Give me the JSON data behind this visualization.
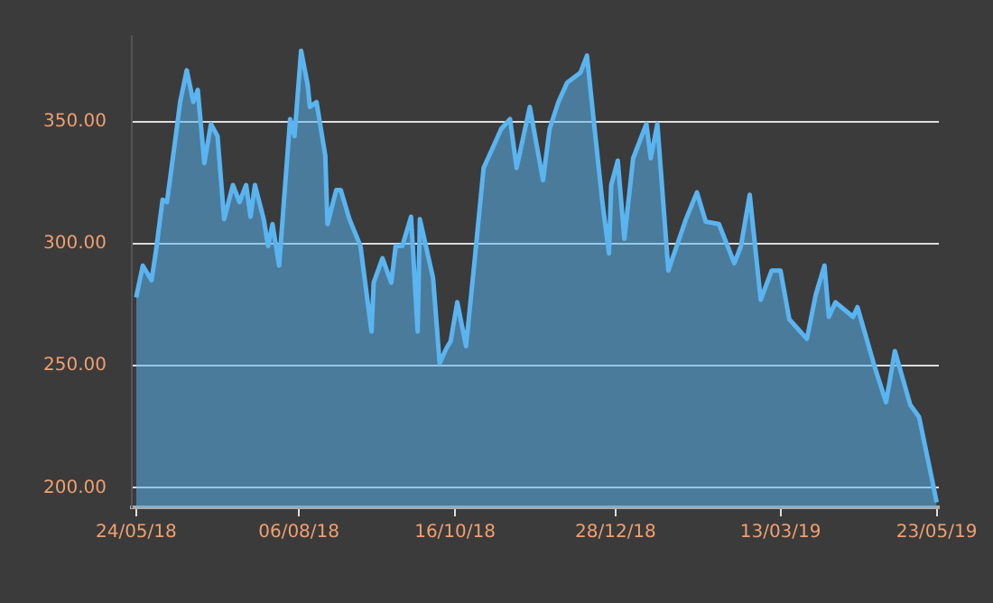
{
  "chart_data": {
    "type": "area",
    "x": [
      "2018-05-24",
      "2018-05-27",
      "2018-05-31",
      "2018-06-02",
      "2018-06-05",
      "2018-06-07",
      "2018-06-11",
      "2018-06-13",
      "2018-06-16",
      "2018-06-19",
      "2018-06-21",
      "2018-06-24",
      "2018-06-27",
      "2018-06-30",
      "2018-07-03",
      "2018-07-07",
      "2018-07-10",
      "2018-07-13",
      "2018-07-15",
      "2018-07-17",
      "2018-07-21",
      "2018-07-23",
      "2018-07-25",
      "2018-07-28",
      "2018-08-02",
      "2018-08-04",
      "2018-08-07",
      "2018-08-10",
      "2018-08-11",
      "2018-08-14",
      "2018-08-18",
      "2018-08-19",
      "2018-08-23",
      "2018-08-25",
      "2018-08-29",
      "2018-09-03",
      "2018-09-08",
      "2018-09-09",
      "2018-09-13",
      "2018-09-17",
      "2018-09-19",
      "2018-09-22",
      "2018-09-26",
      "2018-09-29",
      "2018-09-30",
      "2018-10-06",
      "2018-10-09",
      "2018-10-12",
      "2018-10-14",
      "2018-10-17",
      "2018-10-21",
      "2018-10-25",
      "2018-10-29",
      "2018-11-02",
      "2018-11-06",
      "2018-11-10",
      "2018-11-13",
      "2018-11-19",
      "2018-11-25",
      "2018-11-28",
      "2018-12-02",
      "2018-12-06",
      "2018-12-12",
      "2018-12-15",
      "2018-12-18",
      "2018-12-22",
      "2018-12-25",
      "2018-12-26",
      "2018-12-29",
      "2019-01-01",
      "2019-01-05",
      "2019-01-11",
      "2019-01-13",
      "2019-01-16",
      "2019-01-21",
      "2019-01-29",
      "2019-02-03",
      "2019-02-07",
      "2019-02-13",
      "2019-02-20",
      "2019-02-23",
      "2019-02-27",
      "2019-03-04",
      "2019-03-09",
      "2019-03-13",
      "2019-03-17",
      "2019-03-25",
      "2019-03-29",
      "2019-04-02",
      "2019-04-04",
      "2019-04-07",
      "2019-04-15",
      "2019-04-17",
      "2019-04-25",
      "2019-04-30",
      "2019-05-04",
      "2019-05-11",
      "2019-05-15",
      "2019-05-21",
      "2019-05-23"
    ],
    "series": [
      {
        "color": "#5ab4f0",
        "values": [
          278,
          291,
          285,
          297,
          318,
          317,
          344,
          358,
          371,
          358,
          363,
          333,
          349,
          344,
          310,
          324,
          317,
          324,
          311,
          324,
          310,
          299,
          308,
          291,
          351,
          344,
          379,
          365,
          356,
          358,
          336,
          308,
          322,
          322,
          310,
          299,
          264,
          284,
          294,
          284,
          299,
          299,
          311,
          264,
          310,
          286,
          251,
          257,
          260,
          276,
          258,
          294,
          331,
          339,
          347,
          351,
          331,
          356,
          326,
          347,
          358,
          366,
          370,
          377,
          351,
          317,
          296,
          324,
          334,
          302,
          335,
          349,
          335,
          349,
          289,
          310,
          321,
          309,
          308,
          292,
          299,
          320,
          277,
          289,
          289,
          269,
          261,
          279,
          291,
          270,
          276,
          270,
          274,
          249,
          235,
          256,
          234,
          229,
          203,
          194
        ]
      }
    ],
    "xlim": [
      "2018-05-22",
      "2019-05-24"
    ],
    "xticks": [
      {
        "value": "2018-05-24",
        "label": "24/05/18"
      },
      {
        "value": "2018-08-06",
        "label": "06/08/18"
      },
      {
        "value": "2018-10-16",
        "label": "16/10/18"
      },
      {
        "value": "2018-12-28",
        "label": "28/12/18"
      },
      {
        "value": "2019-03-13",
        "label": "13/03/19"
      },
      {
        "value": "2019-05-23",
        "label": "23/05/19"
      }
    ],
    "ylim": [
      192,
      385
    ],
    "yticks": [
      {
        "value": 200,
        "label": "200.00"
      },
      {
        "value": 250,
        "label": "250.00"
      },
      {
        "value": 300,
        "label": "300.00"
      },
      {
        "value": 350,
        "label": "350.00"
      }
    ],
    "grid": "y",
    "legend": false
  }
}
